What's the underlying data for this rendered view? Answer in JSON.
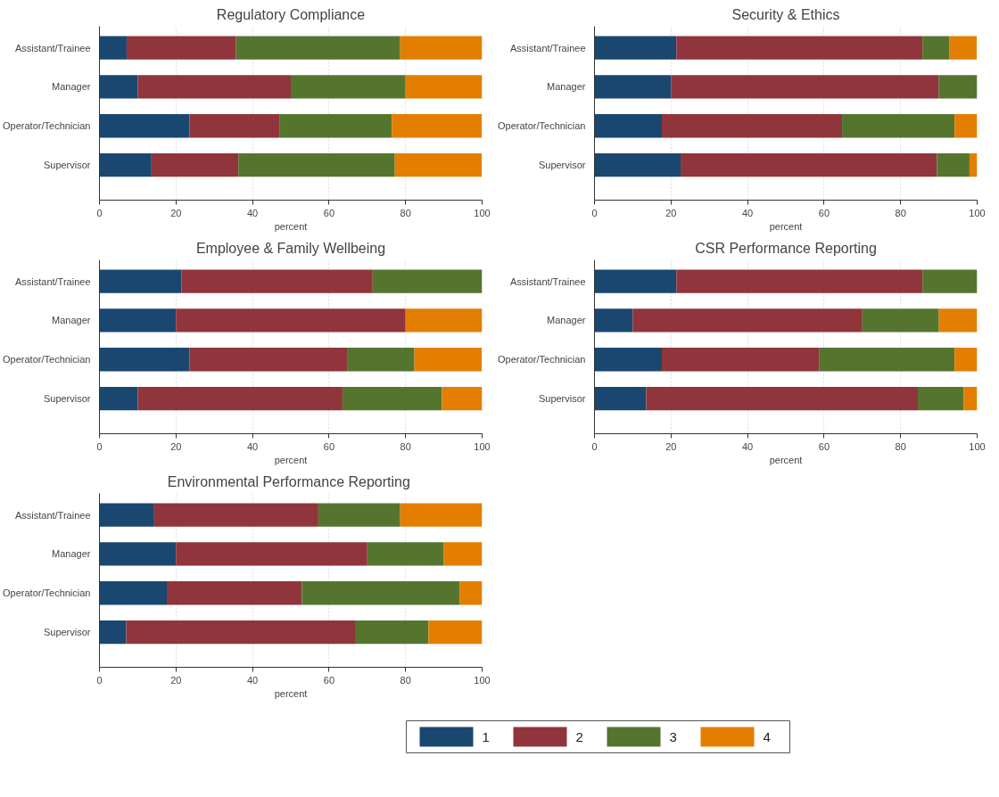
{
  "chart_data": [
    {
      "type": "bar",
      "orientation": "horizontal",
      "stacked": true,
      "title": "Regulatory Compliance",
      "xlabel": "percent",
      "categories": [
        "Assistant/Trainee",
        "Manager",
        "Operator/Technician",
        "Supervisor"
      ],
      "xlim": [
        0,
        100
      ],
      "xticks": [
        0,
        20,
        40,
        60,
        80,
        100
      ],
      "grid": "x",
      "series": [
        {
          "color": "#1a476f",
          "values": [
            7.1,
            10,
            23.5,
            13.6
          ]
        },
        {
          "color": "#90353b",
          "values": [
            28.6,
            40,
            23.5,
            22.7
          ]
        },
        {
          "color": "#55752f",
          "values": [
            42.9,
            30,
            29.4,
            40.9
          ]
        },
        {
          "color": "#e37e00",
          "values": [
            21.4,
            20,
            23.5,
            22.7
          ]
        }
      ]
    },
    {
      "type": "bar",
      "orientation": "horizontal",
      "stacked": true,
      "title": "Security & Ethics",
      "xlabel": "percent",
      "categories": [
        "Assistant/Trainee",
        "Manager",
        "Operator/Technician",
        "Supervisor"
      ],
      "xlim": [
        0,
        100
      ],
      "xticks": [
        0,
        20,
        40,
        60,
        80,
        100
      ],
      "grid": "x",
      "series": [
        {
          "color": "#1a476f",
          "values": [
            21.4,
            20,
            17.6,
            22.5
          ]
        },
        {
          "color": "#90353b",
          "values": [
            64.3,
            70,
            47.1,
            67
          ]
        },
        {
          "color": "#55752f",
          "values": [
            7.1,
            10,
            29.4,
            8.5
          ]
        },
        {
          "color": "#e37e00",
          "values": [
            7.1,
            0,
            5.9,
            2
          ]
        }
      ]
    },
    {
      "type": "bar",
      "orientation": "horizontal",
      "stacked": true,
      "title": "Employee & Family Wellbeing",
      "xlabel": "percent",
      "categories": [
        "Assistant/Trainee",
        "Manager",
        "Operator/Technician",
        "Supervisor"
      ],
      "xlim": [
        0,
        100
      ],
      "xticks": [
        0,
        20,
        40,
        60,
        80,
        100
      ],
      "grid": "x",
      "series": [
        {
          "color": "#1a476f",
          "values": [
            21.4,
            20,
            23.5,
            10
          ]
        },
        {
          "color": "#90353b",
          "values": [
            50,
            60,
            41.2,
            53.5
          ]
        },
        {
          "color": "#55752f",
          "values": [
            28.6,
            0,
            17.6,
            26
          ]
        },
        {
          "color": "#e37e00",
          "values": [
            0,
            20,
            17.6,
            10.5
          ]
        }
      ]
    },
    {
      "type": "bar",
      "orientation": "horizontal",
      "stacked": true,
      "title": "CSR Performance Reporting",
      "xlabel": "percent",
      "categories": [
        "Assistant/Trainee",
        "Manager",
        "Operator/Technician",
        "Supervisor"
      ],
      "xlim": [
        0,
        100
      ],
      "xticks": [
        0,
        20,
        40,
        60,
        80,
        100
      ],
      "grid": "x",
      "series": [
        {
          "color": "#1a476f",
          "values": [
            21.4,
            10,
            17.6,
            13.5
          ]
        },
        {
          "color": "#90353b",
          "values": [
            64.3,
            60,
            41.2,
            71
          ]
        },
        {
          "color": "#55752f",
          "values": [
            14.3,
            20,
            35.3,
            12
          ]
        },
        {
          "color": "#e37e00",
          "values": [
            0,
            10,
            5.9,
            3.5
          ]
        }
      ]
    },
    {
      "type": "bar",
      "orientation": "horizontal",
      "stacked": true,
      "title": "Environmental  Performance Reporting",
      "xlabel": "percent",
      "categories": [
        "Assistant/Trainee",
        "Manager",
        "Operator/Technician",
        "Supervisor"
      ],
      "xlim": [
        0,
        100
      ],
      "xticks": [
        0,
        20,
        40,
        60,
        80,
        100
      ],
      "grid": "x",
      "legend": "bottom",
      "series": [
        {
          "name": "1",
          "color": "#1a476f",
          "values": [
            14.3,
            20,
            17.6,
            7
          ]
        },
        {
          "name": "2",
          "color": "#90353b",
          "values": [
            42.9,
            50,
            35.3,
            60
          ]
        },
        {
          "name": "3",
          "color": "#55752f",
          "values": [
            21.4,
            20,
            41.2,
            19
          ]
        },
        {
          "name": "4",
          "color": "#e37e00",
          "values": [
            21.4,
            10,
            5.9,
            14
          ]
        }
      ]
    }
  ]
}
